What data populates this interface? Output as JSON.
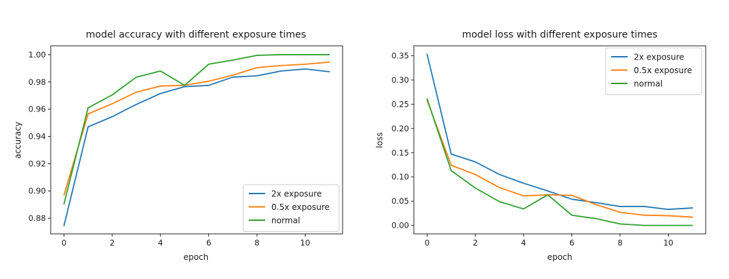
{
  "colors": {
    "2x exposure": "#1f77b4",
    "0.5x exposure": "#ff7f0e",
    "normal": "#2ca02c"
  },
  "chart_data": [
    {
      "type": "line",
      "title": "model accuracy with different exposure times",
      "xlabel": "epoch",
      "ylabel": "accuracy",
      "xlim": [
        -0.55,
        11.55
      ],
      "ylim": [
        0.8685,
        1.0065
      ],
      "xticks": [
        0,
        2,
        4,
        6,
        8,
        10
      ],
      "yticks": [
        0.88,
        0.9,
        0.92,
        0.94,
        0.96,
        0.98,
        1.0
      ],
      "ytick_labels": [
        "0.88",
        "0.90",
        "0.92",
        "0.94",
        "0.96",
        "0.98",
        "1.00"
      ],
      "legend_position": "lower-right",
      "x": [
        0,
        1,
        2,
        3,
        4,
        5,
        6,
        7,
        8,
        9,
        10,
        11
      ],
      "series": [
        {
          "name": "2x exposure",
          "values": [
            0.8745,
            0.947,
            0.9545,
            0.9635,
            0.9715,
            0.9765,
            0.9775,
            0.9835,
            0.9845,
            0.988,
            0.9895,
            0.9875
          ]
        },
        {
          "name": "0.5x exposure",
          "values": [
            0.897,
            0.9565,
            0.964,
            0.9725,
            0.977,
            0.9775,
            0.9805,
            0.985,
            0.9905,
            0.992,
            0.993,
            0.9945
          ]
        },
        {
          "name": "normal",
          "values": [
            0.8905,
            0.961,
            0.9705,
            0.9835,
            0.988,
            0.9775,
            0.993,
            0.996,
            0.9995,
            1.0,
            1.0,
            1.0
          ]
        }
      ]
    },
    {
      "type": "line",
      "title": "model loss with different exposure times",
      "xlabel": "epoch",
      "ylabel": "loss",
      "xlim": [
        -0.55,
        11.55
      ],
      "ylim": [
        -0.0175,
        0.3705
      ],
      "xticks": [
        0,
        2,
        4,
        6,
        8,
        10
      ],
      "yticks": [
        0.0,
        0.05,
        0.1,
        0.15,
        0.2,
        0.25,
        0.3,
        0.35
      ],
      "ytick_labels": [
        "0.00",
        "0.05",
        "0.10",
        "0.15",
        "0.20",
        "0.25",
        "0.30",
        "0.35"
      ],
      "legend_position": "upper-right",
      "x": [
        0,
        1,
        2,
        3,
        4,
        5,
        6,
        7,
        8,
        9,
        10,
        11
      ],
      "series": [
        {
          "name": "2x exposure",
          "values": [
            0.353,
            0.147,
            0.131,
            0.105,
            0.087,
            0.071,
            0.054,
            0.047,
            0.039,
            0.039,
            0.033,
            0.036
          ]
        },
        {
          "name": "0.5x exposure",
          "values": [
            0.258,
            0.124,
            0.105,
            0.078,
            0.061,
            0.063,
            0.062,
            0.043,
            0.027,
            0.021,
            0.02,
            0.017
          ]
        },
        {
          "name": "normal",
          "values": [
            0.261,
            0.113,
            0.077,
            0.049,
            0.034,
            0.063,
            0.021,
            0.014,
            0.003,
            0.0,
            0.0,
            0.0
          ]
        }
      ]
    }
  ]
}
